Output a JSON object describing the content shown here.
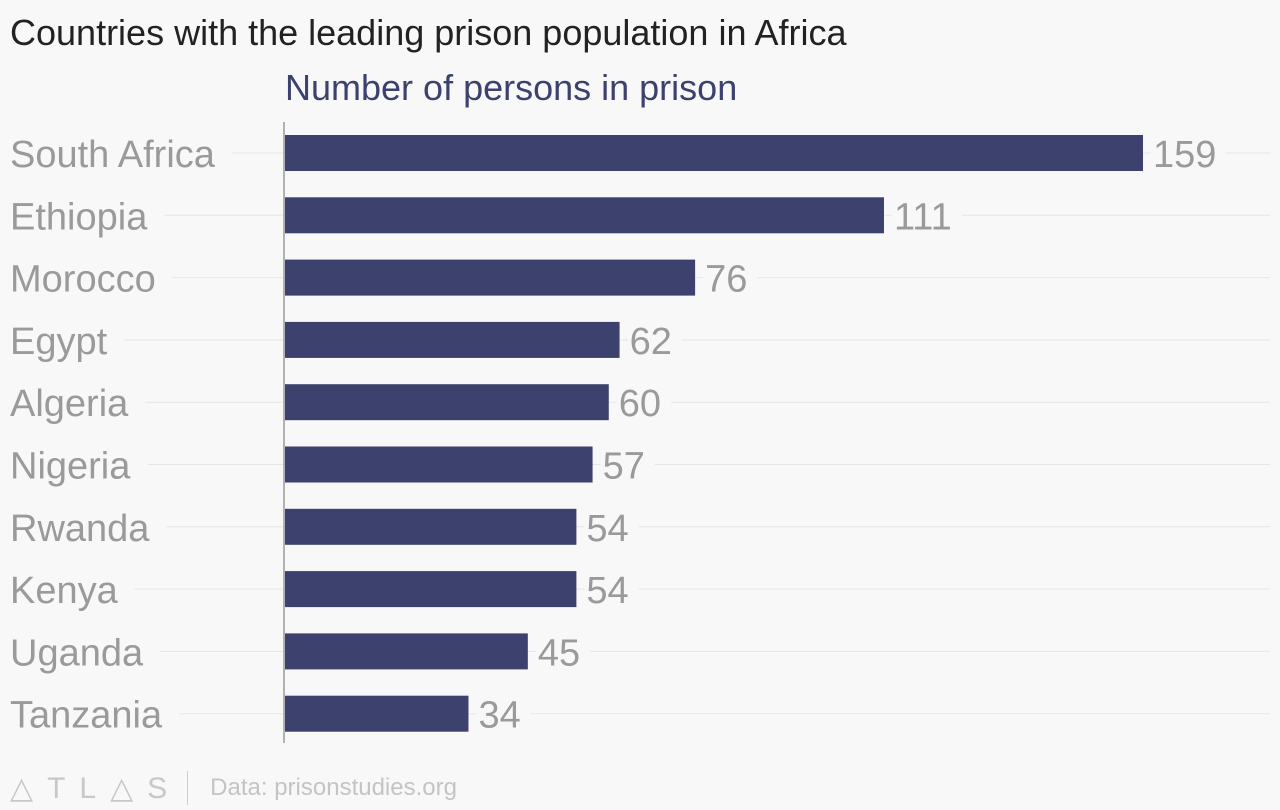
{
  "chart_data": {
    "type": "bar",
    "orientation": "horizontal",
    "title": "Countries with the leading prison population in Africa",
    "subtitle": "Number of persons in prison",
    "categories": [
      "South Africa",
      "Ethiopia",
      "Morocco",
      "Egypt",
      "Algeria",
      "Nigeria",
      "Rwanda",
      "Kenya",
      "Uganda",
      "Tanzania"
    ],
    "values": [
      159,
      111,
      76,
      62,
      60,
      57,
      54,
      54,
      45,
      34
    ],
    "xlim": [
      0,
      159
    ],
    "grid": true,
    "colors": {
      "bar": "#3c416e",
      "label": "#9a9a9a",
      "grid": "#e6e6e6",
      "axis": "#999999"
    }
  },
  "footer": {
    "logo": "ATLAS",
    "source": "Data: prisonstudies.org"
  }
}
